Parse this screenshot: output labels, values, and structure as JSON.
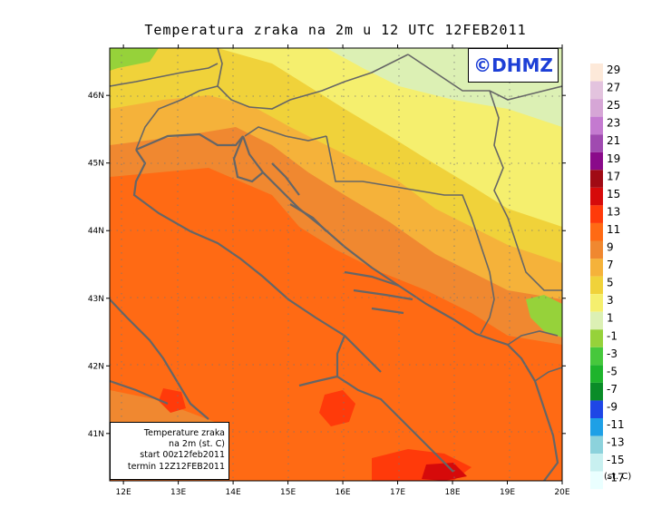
{
  "title": "Temperatura zraka na 2m u 12 UTC 12FEB2011",
  "watermark": "©DHMZ",
  "info_box": {
    "line1": "Temperature zraka",
    "line2": "na 2m (st. C)",
    "line3": "start 00z12feb2011",
    "line4": "termin 12Z12FEB2011"
  },
  "map": {
    "lon_range": [
      11.75,
      20
    ],
    "lat_range": [
      40.3,
      46.7
    ],
    "lon_ticks": [
      "12E",
      "13E",
      "14E",
      "15E",
      "16E",
      "17E",
      "18E",
      "19E",
      "20E"
    ],
    "lat_ticks": [
      "41N",
      "42N",
      "43N",
      "44N",
      "45N",
      "46N"
    ],
    "grid": "dotted"
  },
  "colorbar": {
    "labels": [
      "29",
      "27",
      "25",
      "23",
      "21",
      "19",
      "17",
      "15",
      "13",
      "11",
      "9",
      "7",
      "5",
      "3",
      "1",
      "-1",
      "-3",
      "-5",
      "-7",
      "-9",
      "-11",
      "-13",
      "-15",
      "-17"
    ],
    "colors": [
      "#fde9d9",
      "#e3c3de",
      "#d6a6d6",
      "#c47ad0",
      "#a04ab0",
      "#8a0a8a",
      "#a00a14",
      "#d60a0a",
      "#ff3a0a",
      "#ff6a14",
      "#f08830",
      "#f5b23a",
      "#f0d23a",
      "#f5ef6e",
      "#dcf0b4",
      "#96d23a",
      "#46c83c",
      "#1eb42c",
      "#0a8c28",
      "#1e46e6",
      "#1ea0e6",
      "#8cd2dc",
      "#c8f0f0",
      "#eaffff"
    ],
    "unit": "(st. C)"
  }
}
